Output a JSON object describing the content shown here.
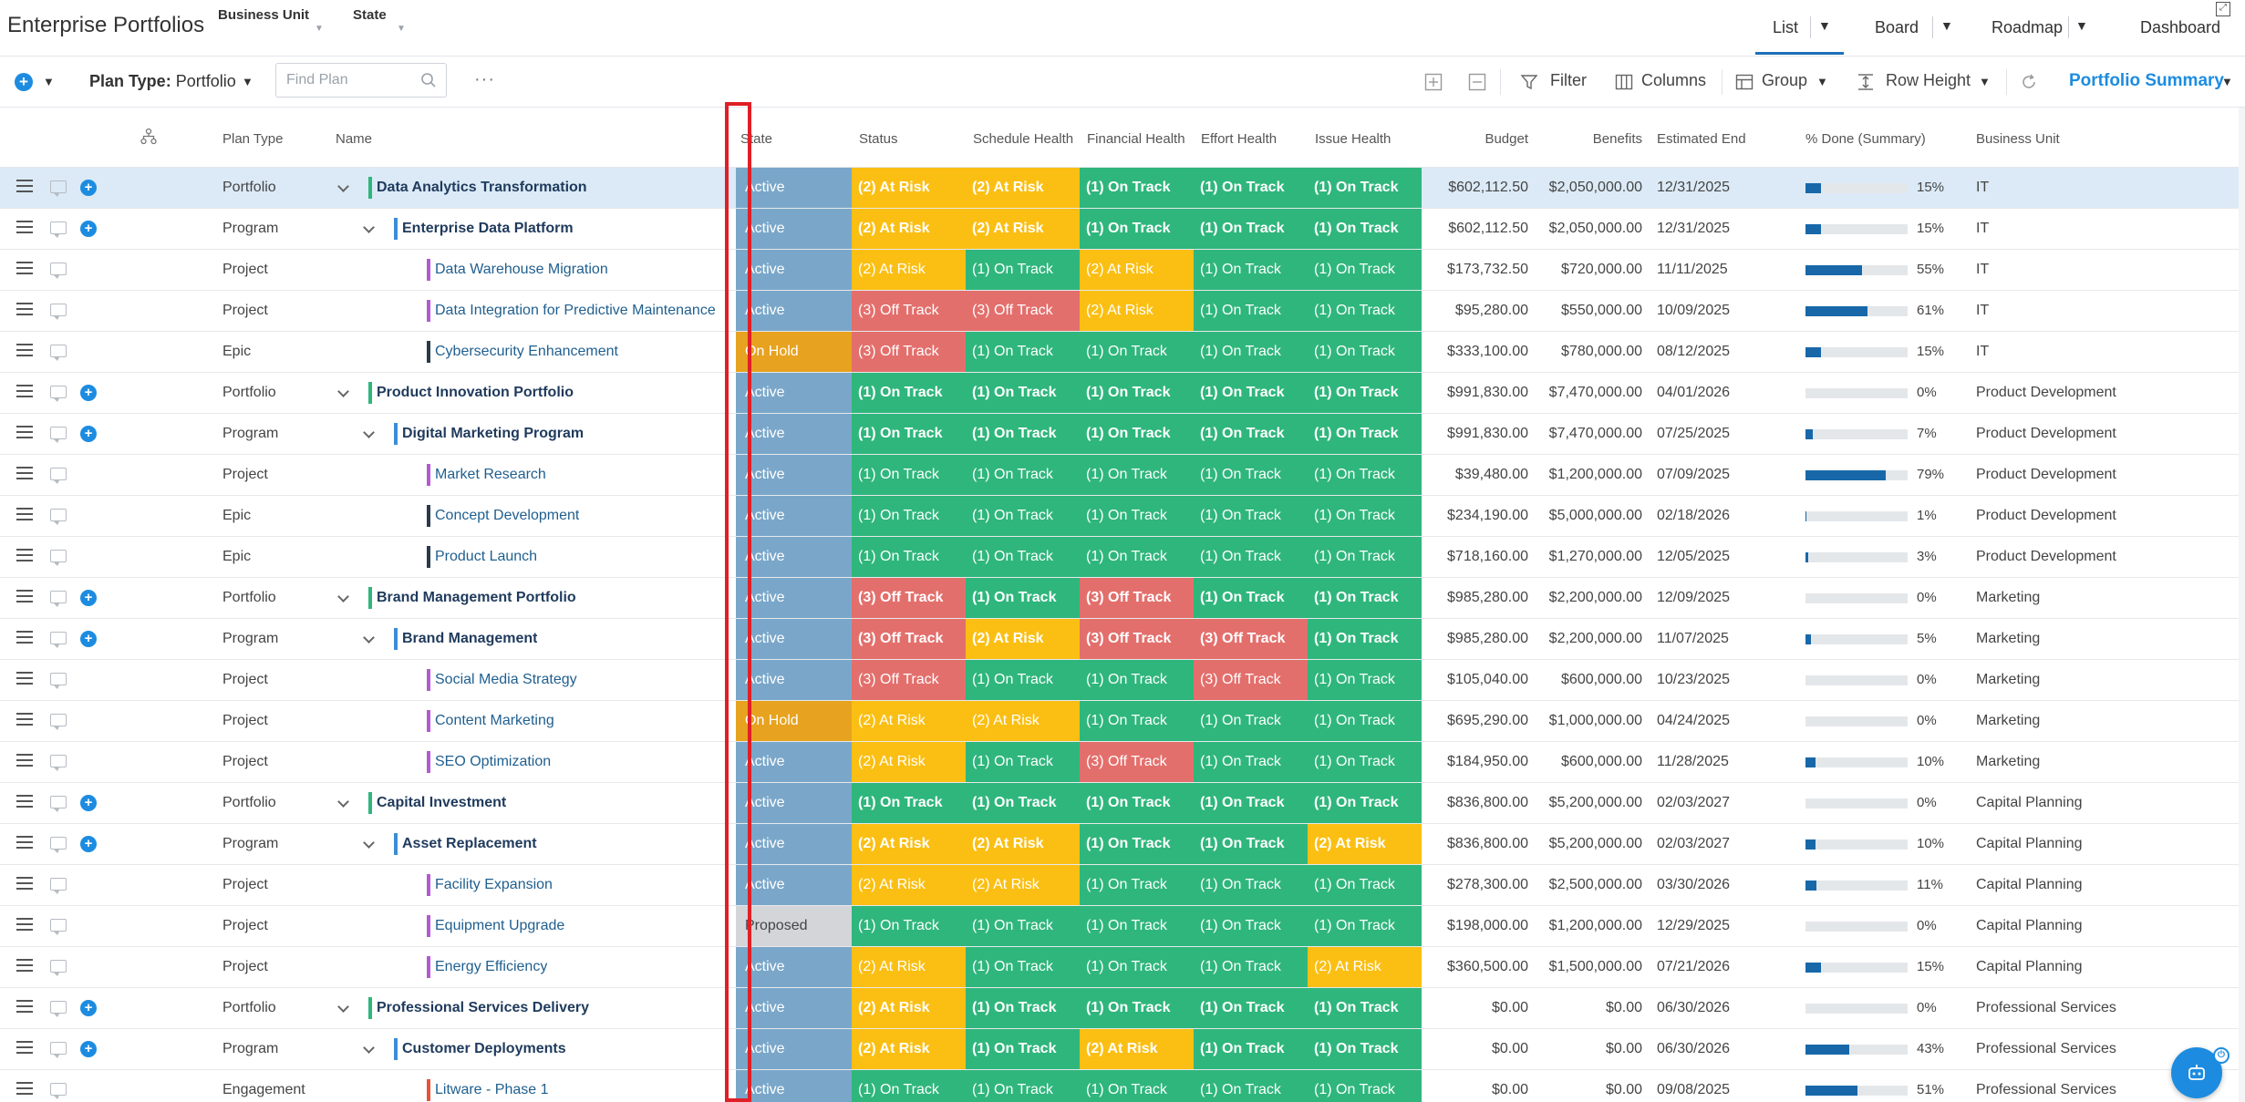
{
  "header": {
    "title": "Enterprise Portfolios",
    "filters": [
      {
        "label": "Business Unit"
      },
      {
        "label": "State"
      }
    ],
    "views": [
      "List",
      "Board",
      "Roadmap",
      "Dashboard"
    ],
    "active_view": "List"
  },
  "toolbar": {
    "plan_type_label": "Plan Type:",
    "plan_type_value": "Portfolio",
    "search_placeholder": "Find Plan",
    "filter_label": "Filter",
    "columns_label": "Columns",
    "group_label": "Group",
    "row_height_label": "Row Height",
    "summary_label": "Portfolio Summary"
  },
  "columns": {
    "plan_type": "Plan Type",
    "name": "Name",
    "state": "State",
    "status": "Status",
    "schedule_health": "Schedule Health",
    "financial_health": "Financial Health",
    "effort_health": "Effort Health",
    "issue_health": "Issue Health",
    "budget": "Budget",
    "benefits": "Benefits",
    "estimated_end": "Estimated End",
    "pct_done": "% Done (Summary)",
    "business_unit": "Business Unit"
  },
  "colors": {
    "green": "#2fb67c",
    "yellow": "#fbbf13",
    "red": "#e36f6c",
    "blue": "#7aa7c9",
    "orange": "#e7a21f",
    "grey": "#d3d5d8",
    "portfolio_bar": "#2fb67c",
    "program_bar": "#3b8ed6",
    "project_bar": "#b45ad0",
    "epic_bar": "#2a3a4c",
    "engagement_bar": "#e5533b",
    "accent": "#1d8ce0"
  },
  "rows": [
    {
      "type": "Portfolio",
      "name": "Data Analytics Transformation",
      "level": 0,
      "state": "Active",
      "status": "(2) At Risk",
      "schedule": "(2) At Risk",
      "financial": "(1) On Track",
      "effort": "(1) On Track",
      "issue": "(1) On Track",
      "budget": "$602,112.50",
      "benefits": "$2,050,000.00",
      "end": "12/31/2025",
      "pct": 15,
      "pct_label": "15%",
      "bu": "IT"
    },
    {
      "type": "Program",
      "name": "Enterprise Data Platform",
      "level": 1,
      "state": "Active",
      "status": "(2) At Risk",
      "schedule": "(2) At Risk",
      "financial": "(1) On Track",
      "effort": "(1) On Track",
      "issue": "(1) On Track",
      "budget": "$602,112.50",
      "benefits": "$2,050,000.00",
      "end": "12/31/2025",
      "pct": 15,
      "pct_label": "15%",
      "bu": "IT"
    },
    {
      "type": "Project",
      "name": "Data Warehouse Migration",
      "level": 2,
      "state": "Active",
      "status": "(2) At Risk",
      "schedule": "(1) On Track",
      "financial": "(2) At Risk",
      "effort": "(1) On Track",
      "issue": "(1) On Track",
      "budget": "$173,732.50",
      "benefits": "$720,000.00",
      "end": "11/11/2025",
      "pct": 55,
      "pct_label": "55%",
      "bu": "IT"
    },
    {
      "type": "Project",
      "name": "Data Integration for Predictive Maintenance",
      "level": 2,
      "state": "Active",
      "status": "(3) Off Track",
      "schedule": "(3) Off Track",
      "financial": "(2) At Risk",
      "effort": "(1) On Track",
      "issue": "(1) On Track",
      "budget": "$95,280.00",
      "benefits": "$550,000.00",
      "end": "10/09/2025",
      "pct": 61,
      "pct_label": "61%",
      "bu": "IT"
    },
    {
      "type": "Epic",
      "name": "Cybersecurity Enhancement",
      "level": 2,
      "state": "On Hold",
      "status": "(3) Off Track",
      "schedule": "(1) On Track",
      "financial": "(1) On Track",
      "effort": "(1) On Track",
      "issue": "(1) On Track",
      "budget": "$333,100.00",
      "benefits": "$780,000.00",
      "end": "08/12/2025",
      "pct": 15,
      "pct_label": "15%",
      "bu": "IT"
    },
    {
      "type": "Portfolio",
      "name": "Product Innovation Portfolio",
      "level": 0,
      "state": "Active",
      "status": "(1) On Track",
      "schedule": "(1) On Track",
      "financial": "(1) On Track",
      "effort": "(1) On Track",
      "issue": "(1) On Track",
      "budget": "$991,830.00",
      "benefits": "$7,470,000.00",
      "end": "04/01/2026",
      "pct": 0,
      "pct_label": "0%",
      "bu": "Product Development"
    },
    {
      "type": "Program",
      "name": "Digital Marketing Program",
      "level": 1,
      "state": "Active",
      "status": "(1) On Track",
      "schedule": "(1) On Track",
      "financial": "(1) On Track",
      "effort": "(1) On Track",
      "issue": "(1) On Track",
      "budget": "$991,830.00",
      "benefits": "$7,470,000.00",
      "end": "07/25/2025",
      "pct": 7,
      "pct_label": "7%",
      "bu": "Product Development"
    },
    {
      "type": "Project",
      "name": "Market Research",
      "level": 2,
      "state": "Active",
      "status": "(1) On Track",
      "schedule": "(1) On Track",
      "financial": "(1) On Track",
      "effort": "(1) On Track",
      "issue": "(1) On Track",
      "budget": "$39,480.00",
      "benefits": "$1,200,000.00",
      "end": "07/09/2025",
      "pct": 79,
      "pct_label": "79%",
      "bu": "Product Development"
    },
    {
      "type": "Epic",
      "name": "Concept Development",
      "level": 2,
      "state": "Active",
      "status": "(1) On Track",
      "schedule": "(1) On Track",
      "financial": "(1) On Track",
      "effort": "(1) On Track",
      "issue": "(1) On Track",
      "budget": "$234,190.00",
      "benefits": "$5,000,000.00",
      "end": "02/18/2026",
      "pct": 1,
      "pct_label": "1%",
      "bu": "Product Development"
    },
    {
      "type": "Epic",
      "name": "Product Launch",
      "level": 2,
      "state": "Active",
      "status": "(1) On Track",
      "schedule": "(1) On Track",
      "financial": "(1) On Track",
      "effort": "(1) On Track",
      "issue": "(1) On Track",
      "budget": "$718,160.00",
      "benefits": "$1,270,000.00",
      "end": "12/05/2025",
      "pct": 3,
      "pct_label": "3%",
      "bu": "Product Development"
    },
    {
      "type": "Portfolio",
      "name": "Brand Management Portfolio",
      "level": 0,
      "state": "Active",
      "status": "(3) Off Track",
      "schedule": "(1) On Track",
      "financial": "(3) Off Track",
      "effort": "(1) On Track",
      "issue": "(1) On Track",
      "budget": "$985,280.00",
      "benefits": "$2,200,000.00",
      "end": "12/09/2025",
      "pct": 0,
      "pct_label": "0%",
      "bu": "Marketing"
    },
    {
      "type": "Program",
      "name": "Brand Management",
      "level": 1,
      "state": "Active",
      "status": "(3) Off Track",
      "schedule": "(2) At Risk",
      "financial": "(3) Off Track",
      "effort": "(3) Off Track",
      "issue": "(1) On Track",
      "budget": "$985,280.00",
      "benefits": "$2,200,000.00",
      "end": "11/07/2025",
      "pct": 5,
      "pct_label": "5%",
      "bu": "Marketing"
    },
    {
      "type": "Project",
      "name": "Social Media Strategy",
      "level": 2,
      "state": "Active",
      "status": "(3) Off Track",
      "schedule": "(1) On Track",
      "financial": "(1) On Track",
      "effort": "(3) Off Track",
      "issue": "(1) On Track",
      "budget": "$105,040.00",
      "benefits": "$600,000.00",
      "end": "10/23/2025",
      "pct": 0,
      "pct_label": "0%",
      "bu": "Marketing"
    },
    {
      "type": "Project",
      "name": "Content Marketing",
      "level": 2,
      "state": "On Hold",
      "status": "(2) At Risk",
      "schedule": "(2) At Risk",
      "financial": "(1) On Track",
      "effort": "(1) On Track",
      "issue": "(1) On Track",
      "budget": "$695,290.00",
      "benefits": "$1,000,000.00",
      "end": "04/24/2025",
      "pct": 0,
      "pct_label": "0%",
      "bu": "Marketing"
    },
    {
      "type": "Project",
      "name": "SEO Optimization",
      "level": 2,
      "state": "Active",
      "status": "(2) At Risk",
      "schedule": "(1) On Track",
      "financial": "(3) Off Track",
      "effort": "(1) On Track",
      "issue": "(1) On Track",
      "budget": "$184,950.00",
      "benefits": "$600,000.00",
      "end": "11/28/2025",
      "pct": 10,
      "pct_label": "10%",
      "bu": "Marketing"
    },
    {
      "type": "Portfolio",
      "name": "Capital Investment",
      "level": 0,
      "state": "Active",
      "status": "(1) On Track",
      "schedule": "(1) On Track",
      "financial": "(1) On Track",
      "effort": "(1) On Track",
      "issue": "(1) On Track",
      "budget": "$836,800.00",
      "benefits": "$5,200,000.00",
      "end": "02/03/2027",
      "pct": 0,
      "pct_label": "0%",
      "bu": "Capital Planning"
    },
    {
      "type": "Program",
      "name": "Asset Replacement",
      "level": 1,
      "state": "Active",
      "status": "(2) At Risk",
      "schedule": "(2) At Risk",
      "financial": "(1) On Track",
      "effort": "(1) On Track",
      "issue": "(2) At Risk",
      "budget": "$836,800.00",
      "benefits": "$5,200,000.00",
      "end": "02/03/2027",
      "pct": 10,
      "pct_label": "10%",
      "bu": "Capital Planning"
    },
    {
      "type": "Project",
      "name": "Facility Expansion",
      "level": 2,
      "state": "Active",
      "status": "(2) At Risk",
      "schedule": "(2) At Risk",
      "financial": "(1) On Track",
      "effort": "(1) On Track",
      "issue": "(1) On Track",
      "budget": "$278,300.00",
      "benefits": "$2,500,000.00",
      "end": "03/30/2026",
      "pct": 11,
      "pct_label": "11%",
      "bu": "Capital Planning"
    },
    {
      "type": "Project",
      "name": "Equipment Upgrade",
      "level": 2,
      "state": "Proposed",
      "status": "(1) On Track",
      "schedule": "(1) On Track",
      "financial": "(1) On Track",
      "effort": "(1) On Track",
      "issue": "(1) On Track",
      "budget": "$198,000.00",
      "benefits": "$1,200,000.00",
      "end": "12/29/2025",
      "pct": 0,
      "pct_label": "0%",
      "bu": "Capital Planning"
    },
    {
      "type": "Project",
      "name": "Energy Efficiency",
      "level": 2,
      "state": "Active",
      "status": "(2) At Risk",
      "schedule": "(1) On Track",
      "financial": "(1) On Track",
      "effort": "(1) On Track",
      "issue": "(2) At Risk",
      "budget": "$360,500.00",
      "benefits": "$1,500,000.00",
      "end": "07/21/2026",
      "pct": 15,
      "pct_label": "15%",
      "bu": "Capital Planning"
    },
    {
      "type": "Portfolio",
      "name": "Professional Services Delivery",
      "level": 0,
      "state": "Active",
      "status": "(2) At Risk",
      "schedule": "(1) On Track",
      "financial": "(1) On Track",
      "effort": "(1) On Track",
      "issue": "(1) On Track",
      "budget": "$0.00",
      "benefits": "$0.00",
      "end": "06/30/2026",
      "pct": 0,
      "pct_label": "0%",
      "bu": "Professional Services"
    },
    {
      "type": "Program",
      "name": "Customer Deployments",
      "level": 1,
      "state": "Active",
      "status": "(2) At Risk",
      "schedule": "(1) On Track",
      "financial": "(2) At Risk",
      "effort": "(1) On Track",
      "issue": "(1) On Track",
      "budget": "$0.00",
      "benefits": "$0.00",
      "end": "06/30/2026",
      "pct": 43,
      "pct_label": "43%",
      "bu": "Professional Services"
    },
    {
      "type": "Engagement",
      "name": "Litware - Phase 1",
      "level": 2,
      "state": "Active",
      "status": "(1) On Track",
      "schedule": "(1) On Track",
      "financial": "(1) On Track",
      "effort": "(1) On Track",
      "issue": "(1) On Track",
      "budget": "$0.00",
      "benefits": "$0.00",
      "end": "09/08/2025",
      "pct": 51,
      "pct_label": "51%",
      "bu": "Professional Services"
    }
  ]
}
